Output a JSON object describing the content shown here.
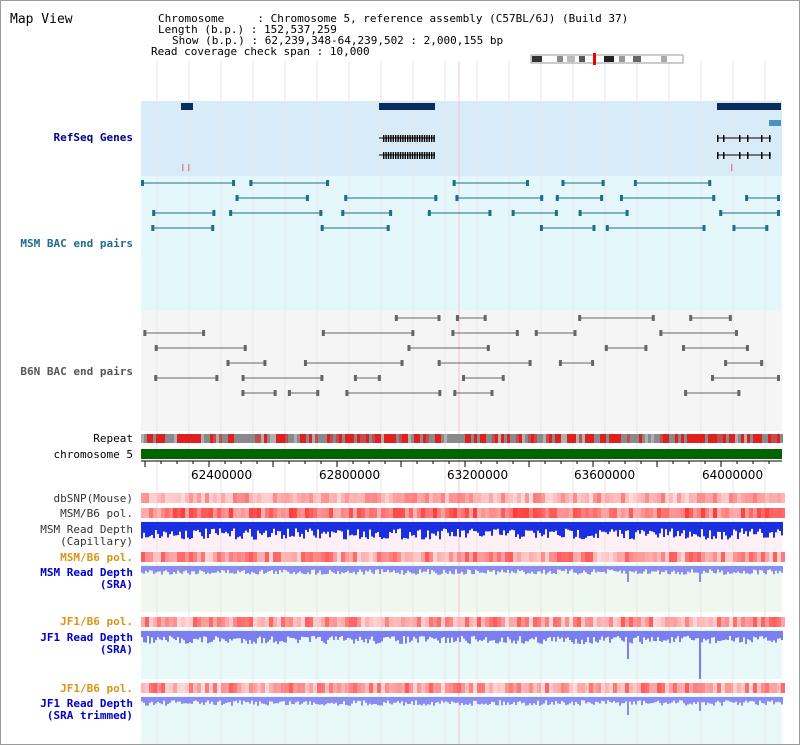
{
  "title": "Map View",
  "info": {
    "chromosome_label": "Chromosome",
    "chromosome_value": "Chromosome 5, reference assembly (C57BL/6J) (Build 37)",
    "length_label": "Length (b.p.)",
    "length_value": "152,537,259",
    "show_label": "Show (b.p.)",
    "show_value": "62,239,348-64,239,502 : 2,000,155 bp",
    "coverage_label": "Read coverage check span",
    "coverage_value": "10,000"
  },
  "tracks": {
    "refseq": "RefSeq Genes",
    "msm_bac": "MSM BAC end pairs",
    "b6n_bac": "B6N BAC end pairs",
    "repeat": "Repeat",
    "chromosome": "chromosome 5",
    "dbsnp": "dbSNP(Mouse)",
    "msm_b6_pol_1": "MSM/B6 pol.",
    "msm_read_depth_cap_1": "MSM Read Depth",
    "msm_read_depth_cap_2": "(Capillary)",
    "msm_b6_pol_2": "MSM/B6 pol.",
    "msm_read_depth_sra_1": "MSM Read Depth",
    "msm_read_depth_sra_2": "(SRA)",
    "jf1_b6_pol_1": "JF1/B6 pol.",
    "jf1_read_depth_sra_1": "JF1 Read Depth",
    "jf1_read_depth_sra_2": "(SRA)",
    "jf1_b6_pol_2": "JF1/B6 pol.",
    "jf1_read_depth_trim_1": "JF1 Read Depth",
    "jf1_read_depth_trim_2": "(SRA trimmed)"
  },
  "axis_ticks": [
    "62400000",
    "62800000",
    "63200000",
    "63600000",
    "64000000"
  ],
  "colors": {
    "refseq_bg": "#d8ecf8",
    "msm_bg": "#e4f8fc",
    "b6n_bg": "#f5f5f5",
    "gene_navy": "#0a2d5e",
    "msm_teal": "#1f6c8c",
    "b6n_gray": "#666666",
    "chromosome_green": "#006400"
  }
}
